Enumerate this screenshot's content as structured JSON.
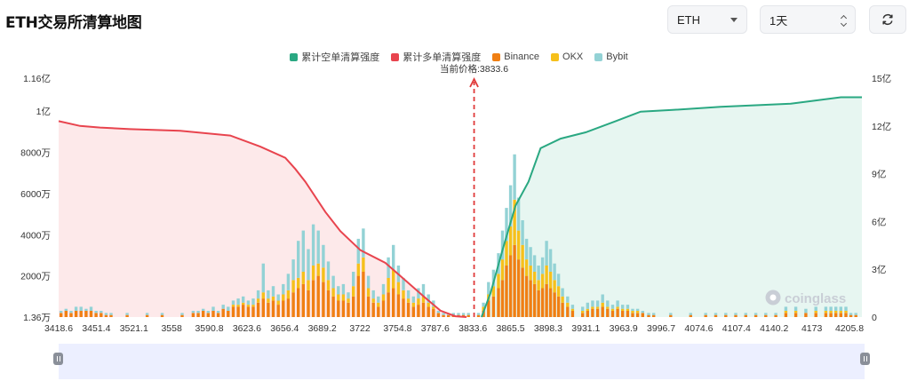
{
  "header": {
    "title": "ETH交易所清算地图",
    "symbol_select": "ETH",
    "range_select": "1天"
  },
  "icons": {
    "refresh": "refresh-icon",
    "symbol_caret": "chevron-down-icon",
    "range_caret": "chevron-up-down-icon",
    "watermark": "coinglass-logo",
    "current_price_marker": "dashed-arrow"
  },
  "colors": {
    "short_line": "#2aa882",
    "short_fill": "#e3f4ee",
    "long_line": "#e8444e",
    "long_fill": "#fde5e6",
    "binance": "#f07f13",
    "okx": "#f6c01b",
    "bybit": "#93d2d5",
    "marker": "#e03a3a"
  },
  "watermark": "coinglass",
  "chart_data": {
    "type": "bar+area",
    "current_price_label": "当前价格:3833.6",
    "current_price": 3833.6,
    "legend": [
      {
        "name": "累计空单清算强度",
        "color": "#2aa882"
      },
      {
        "name": "累计多单清算强度",
        "color": "#e8444e"
      },
      {
        "name": "Binance",
        "color": "#f07f13"
      },
      {
        "name": "OKX",
        "color": "#f6c01b"
      },
      {
        "name": "Bybit",
        "color": "#93d2d5"
      }
    ],
    "x_ticks": [
      "3418.6",
      "3451.4",
      "3521.1",
      "3558",
      "3590.8",
      "3623.6",
      "3656.4",
      "3689.2",
      "3722",
      "3754.8",
      "3787.6",
      "3833.6",
      "3865.5",
      "3898.3",
      "3931.1",
      "3963.9",
      "3996.7",
      "4074.6",
      "4107.4",
      "4140.2",
      "4173",
      "4205.8"
    ],
    "x_range": [
      3418.6,
      4221.0
    ],
    "y_left": {
      "ticks": [
        "1.36万",
        "2000万",
        "4000万",
        "6000万",
        "8000万",
        "1亿",
        "1.16亿"
      ],
      "values": [
        13600,
        20000000,
        40000000,
        60000000,
        80000000,
        100000000,
        116000000
      ],
      "range": [
        13600,
        116000000
      ]
    },
    "y_right": {
      "ticks": [
        "0",
        "3亿",
        "6亿",
        "9亿",
        "12亿",
        "15亿"
      ],
      "values": [
        0,
        300000000,
        600000000,
        900000000,
        1200000000,
        1500000000
      ],
      "range": [
        0,
        1500000000
      ]
    },
    "cumulative_long_liquidation": {
      "name": "累计多单清算强度",
      "x": [
        3418.6,
        3440,
        3460,
        3490,
        3540,
        3590,
        3620,
        3645,
        3655,
        3665,
        3685,
        3700,
        3720,
        3745,
        3765,
        3785,
        3800,
        3815,
        3826
      ],
      "y": [
        1230000000,
        1200000000,
        1190000000,
        1180000000,
        1170000000,
        1140000000,
        1070000000,
        1000000000,
        930000000,
        850000000,
        660000000,
        540000000,
        420000000,
        340000000,
        230000000,
        120000000,
        40000000,
        5000000,
        0
      ]
    },
    "cumulative_short_liquidation": {
      "name": "累计空单清算强度",
      "x": [
        3841,
        3850,
        3862,
        3875,
        3888,
        3900,
        3920,
        3945,
        3975,
        4000,
        4030,
        4080,
        4150,
        4200,
        4221
      ],
      "y": [
        0,
        150000000,
        420000000,
        700000000,
        850000000,
        1060000000,
        1120000000,
        1160000000,
        1230000000,
        1290000000,
        1300000000,
        1320000000,
        1340000000,
        1380000000,
        1380000000
      ]
    },
    "bar_series": [
      "Binance",
      "OKX",
      "Bybit"
    ],
    "bars": {
      "x": [
        3421,
        3426,
        3431,
        3436,
        3441,
        3446,
        3451,
        3456,
        3461,
        3466,
        3471,
        3487,
        3507,
        3522,
        3542,
        3553,
        3558,
        3563,
        3568,
        3573,
        3578,
        3583,
        3588,
        3593,
        3598,
        3603,
        3608,
        3613,
        3618,
        3623,
        3628,
        3633,
        3638,
        3643,
        3648,
        3653,
        3658,
        3663,
        3668,
        3673,
        3678,
        3683,
        3688,
        3693,
        3698,
        3703,
        3708,
        3713,
        3718,
        3723,
        3728,
        3733,
        3738,
        3743,
        3748,
        3753,
        3758,
        3763,
        3768,
        3773,
        3778,
        3783,
        3788,
        3793,
        3798,
        3803,
        3808,
        3813,
        3818,
        3823,
        3828,
        3838,
        3843,
        3848,
        3853,
        3858,
        3862,
        3866,
        3870,
        3874,
        3878,
        3882,
        3886,
        3890,
        3894,
        3898,
        3902,
        3906,
        3910,
        3914,
        3918,
        3922,
        3927,
        3932,
        3942,
        3947,
        3952,
        3957,
        3962,
        3967,
        3972,
        3977,
        3982,
        3987,
        3992,
        3997,
        4002,
        4008,
        4013,
        4030,
        4050,
        4065,
        4075,
        4085,
        4095,
        4105,
        4115,
        4125,
        4135,
        4145,
        4155,
        4165,
        4175,
        4185,
        4190,
        4195,
        4200,
        4205,
        4210,
        4215
      ],
      "binance": [
        2,
        3,
        2,
        3,
        3,
        3,
        3,
        2,
        2,
        1,
        1,
        1,
        1,
        1,
        1,
        2,
        2,
        3,
        2,
        3,
        2,
        4,
        3,
        5,
        5,
        6,
        5,
        5,
        7,
        9,
        7,
        8,
        6,
        8,
        9,
        12,
        14,
        16,
        13,
        18,
        20,
        17,
        13,
        10,
        8,
        8,
        7,
        10,
        20,
        22,
        10,
        7,
        5,
        8,
        12,
        14,
        11,
        9,
        7,
        5,
        6,
        7,
        5,
        4,
        2,
        1,
        1,
        1,
        1,
        1,
        1,
        1,
        3,
        8,
        10,
        14,
        18,
        25,
        30,
        35,
        28,
        24,
        20,
        18,
        16,
        13,
        14,
        16,
        14,
        12,
        10,
        7,
        5,
        3,
        2,
        3,
        4,
        4,
        5,
        4,
        3,
        4,
        3,
        3,
        2,
        2,
        2,
        1,
        1,
        1,
        1,
        1,
        1,
        1,
        1,
        1,
        1,
        1,
        1,
        2,
        2,
        2,
        2,
        2,
        2,
        2,
        2,
        2,
        1,
        1
      ],
      "okx": [
        0,
        0,
        0,
        0,
        0,
        0,
        0,
        0,
        0,
        0,
        0,
        0,
        0,
        0,
        0,
        0,
        0,
        0,
        0,
        0,
        0,
        0,
        0,
        1,
        1,
        1,
        1,
        1,
        2,
        3,
        2,
        2,
        2,
        3,
        4,
        6,
        5,
        6,
        5,
        7,
        6,
        7,
        5,
        4,
        3,
        3,
        2,
        5,
        6,
        7,
        4,
        2,
        2,
        3,
        7,
        9,
        6,
        4,
        2,
        2,
        3,
        3,
        2,
        1,
        0,
        0,
        0,
        0,
        0,
        0,
        0,
        0,
        2,
        3,
        5,
        7,
        10,
        12,
        14,
        22,
        14,
        11,
        8,
        7,
        6,
        5,
        7,
        9,
        8,
        6,
        5,
        3,
        2,
        1,
        1,
        1,
        1,
        1,
        2,
        1,
        1,
        1,
        1,
        1,
        1,
        1,
        0,
        0,
        0,
        0,
        0,
        0,
        0,
        0,
        0,
        0,
        0,
        0,
        0,
        1,
        1,
        0,
        1,
        1,
        1,
        1,
        1,
        1,
        0,
        0
      ],
      "bybit": [
        1,
        1,
        1,
        2,
        2,
        1,
        2,
        1,
        1,
        1,
        1,
        1,
        1,
        1,
        1,
        1,
        1,
        1,
        1,
        2,
        1,
        2,
        2,
        2,
        3,
        3,
        2,
        3,
        4,
        14,
        4,
        5,
        3,
        5,
        8,
        10,
        18,
        20,
        15,
        20,
        16,
        11,
        9,
        6,
        4,
        5,
        3,
        7,
        12,
        14,
        6,
        4,
        3,
        5,
        10,
        12,
        8,
        6,
        4,
        3,
        5,
        6,
        4,
        3,
        1,
        1,
        1,
        1,
        1,
        1,
        1,
        1,
        2,
        6,
        8,
        10,
        14,
        16,
        20,
        22,
        16,
        12,
        10,
        9,
        8,
        7,
        8,
        12,
        11,
        8,
        6,
        4,
        3,
        2,
        2,
        3,
        3,
        3,
        4,
        3,
        2,
        3,
        2,
        2,
        1,
        1,
        1,
        1,
        1,
        1,
        1,
        1,
        1,
        1,
        1,
        1,
        1,
        1,
        1,
        2,
        2,
        2,
        2,
        2,
        2,
        2,
        2,
        2,
        1,
        1
      ],
      "unit": "百万"
    },
    "grid": false,
    "legend_position": "top-center"
  }
}
